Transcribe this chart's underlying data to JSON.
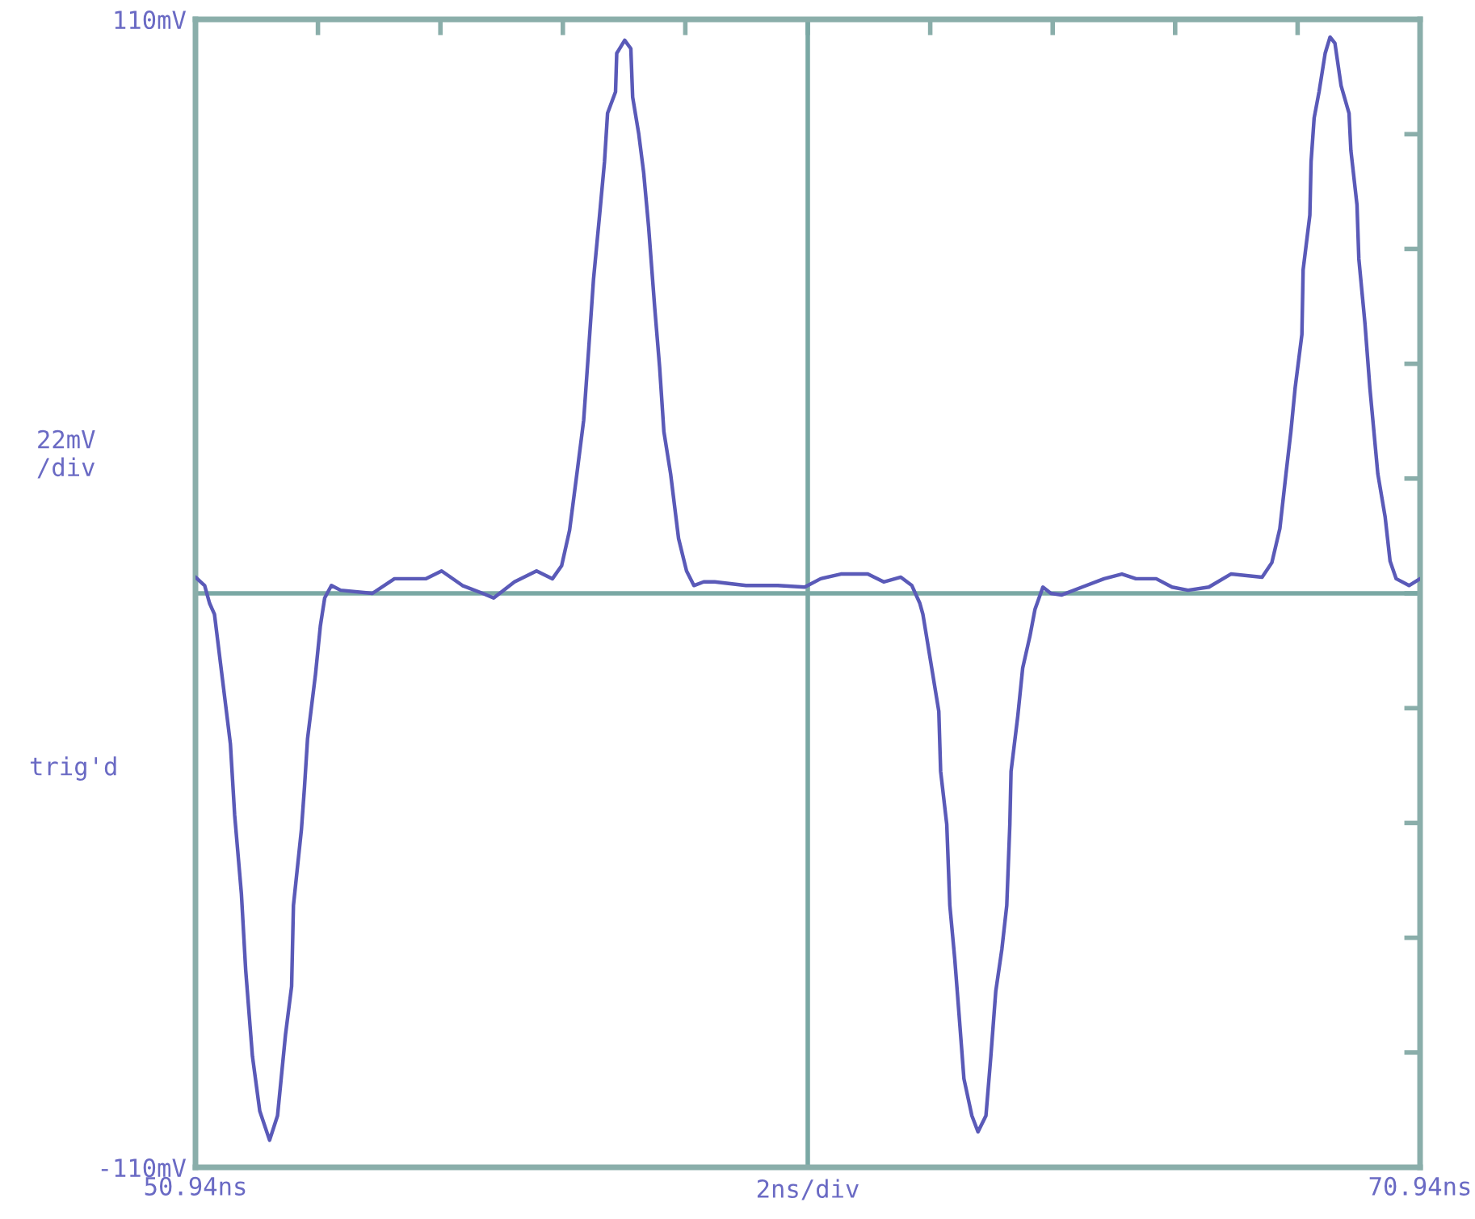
{
  "chart_data": {
    "type": "line",
    "xlabel": "2ns/div",
    "ylabel": "22mV\n/div",
    "annotations": [
      "trig'd"
    ],
    "xlim": [
      50.94,
      70.94
    ],
    "ylim": [
      -110,
      110
    ],
    "xticks": [
      {
        "value": 50.94,
        "label": "50.94ns"
      },
      {
        "value": 52.94,
        "label": null
      },
      {
        "value": 54.94,
        "label": null
      },
      {
        "value": 56.94,
        "label": null
      },
      {
        "value": 58.94,
        "label": null
      },
      {
        "value": 60.94,
        "label": null
      },
      {
        "value": 62.94,
        "label": null
      },
      {
        "value": 64.94,
        "label": null
      },
      {
        "value": 66.94,
        "label": null
      },
      {
        "value": 68.94,
        "label": null
      },
      {
        "value": 70.94,
        "label": "70.94ns"
      }
    ],
    "yticks": [
      {
        "value": -110,
        "label": "-110mV"
      },
      {
        "value": -88,
        "label": null
      },
      {
        "value": -66,
        "label": null
      },
      {
        "value": -44,
        "label": null
      },
      {
        "value": -22,
        "label": null
      },
      {
        "value": 0,
        "label": null
      },
      {
        "value": 22,
        "label": null
      },
      {
        "value": 44,
        "label": null
      },
      {
        "value": 66,
        "label": null
      },
      {
        "value": 88,
        "label": null
      },
      {
        "value": 110,
        "label": "110mV"
      }
    ],
    "ref_lines": [
      {
        "axis": "y",
        "value": 0,
        "color": "#7aa8a4"
      },
      {
        "axis": "x",
        "value": 60.94,
        "color": "#7aa8a4"
      }
    ],
    "grid": false,
    "legend": false,
    "marker": "none",
    "line_style": "solid",
    "series": [
      {
        "color": "#5a5ab8",
        "x": [
          50.94,
          51.09,
          51.17,
          51.25,
          51.38,
          51.51,
          51.58,
          51.69,
          51.76,
          51.87,
          51.99,
          52.15,
          52.28,
          52.41,
          52.51,
          52.54,
          52.67,
          52.72,
          52.77,
          52.9,
          52.98,
          53.05,
          53.16,
          53.31,
          53.83,
          54.19,
          54.7,
          54.96,
          55.3,
          55.63,
          55.81,
          56.15,
          56.51,
          56.77,
          56.92,
          57.05,
          57.18,
          57.28,
          57.36,
          57.44,
          57.54,
          57.62,
          57.67,
          57.8,
          57.82,
          57.95,
          58.05,
          58.08,
          58.18,
          58.26,
          58.34,
          58.44,
          58.52,
          58.59,
          58.7,
          58.83,
          58.96,
          59.08,
          59.24,
          59.42,
          59.93,
          60.45,
          60.89,
          61.15,
          61.48,
          61.92,
          62.18,
          62.46,
          62.64,
          62.77,
          62.82,
          62.95,
          63.08,
          63.11,
          63.21,
          63.26,
          63.34,
          63.41,
          63.49,
          63.62,
          63.72,
          63.85,
          63.93,
          64.01,
          64.11,
          64.19,
          64.24,
          64.26,
          64.37,
          64.45,
          64.57,
          64.65,
          64.78,
          64.91,
          65.09,
          65.42,
          65.78,
          66.07,
          66.3,
          66.63,
          66.89,
          67.15,
          67.49,
          67.85,
          68.36,
          68.52,
          68.65,
          68.75,
          68.83,
          68.9,
          69.01,
          69.03,
          69.14,
          69.16,
          69.21,
          69.29,
          69.39,
          69.47,
          69.55,
          69.65,
          69.78,
          69.81,
          69.91,
          69.94,
          70.04,
          70.12,
          70.25,
          70.37,
          70.45,
          70.55,
          70.76,
          70.94
        ],
        "values": [
          3.1,
          1.5,
          -1.9,
          -4.0,
          -16.4,
          -28.8,
          -42.5,
          -57.6,
          -72.2,
          -88.7,
          -99.2,
          -104.8,
          -100.1,
          -84.6,
          -75.3,
          -59.8,
          -45.3,
          -37.2,
          -27.9,
          -15.5,
          -6.2,
          -0.9,
          1.5,
          0.6,
          0,
          2.8,
          2.8,
          4.3,
          1.5,
          0,
          -0.9,
          2.2,
          4.3,
          2.8,
          5.3,
          12.1,
          23.9,
          33.2,
          46.5,
          60.1,
          72.5,
          82.7,
          92.0,
          96.1,
          103.5,
          106.0,
          104.4,
          95.1,
          88.0,
          80.6,
          70.3,
          54.8,
          43.4,
          31.0,
          22.9,
          10.5,
          4.3,
          1.5,
          2.2,
          2.2,
          1.5,
          1.5,
          1.2,
          2.8,
          3.7,
          3.7,
          2.2,
          3.1,
          1.5,
          -1.9,
          -4.0,
          -13.3,
          -22.6,
          -34.1,
          -44.3,
          -59.8,
          -70.0,
          -80.6,
          -93.0,
          -100.1,
          -103.2,
          -100.1,
          -88.7,
          -76.3,
          -68.2,
          -59.8,
          -44.3,
          -34.1,
          -23.5,
          -14.3,
          -8.1,
          -3.1,
          1.2,
          0,
          -0.3,
          1.2,
          2.8,
          3.7,
          2.8,
          2.8,
          1.2,
          0.6,
          1.2,
          3.7,
          3.1,
          5.9,
          12.4,
          22.9,
          31.0,
          39.4,
          49.6,
          62.0,
          72.5,
          82.7,
          91.1,
          96.1,
          103.5,
          106.6,
          105.4,
          97.3,
          92.0,
          84.9,
          74.4,
          64.1,
          51.7,
          39.4,
          22.9,
          14.6,
          6.2,
          2.8,
          1.5,
          2.8
        ]
      }
    ]
  }
}
